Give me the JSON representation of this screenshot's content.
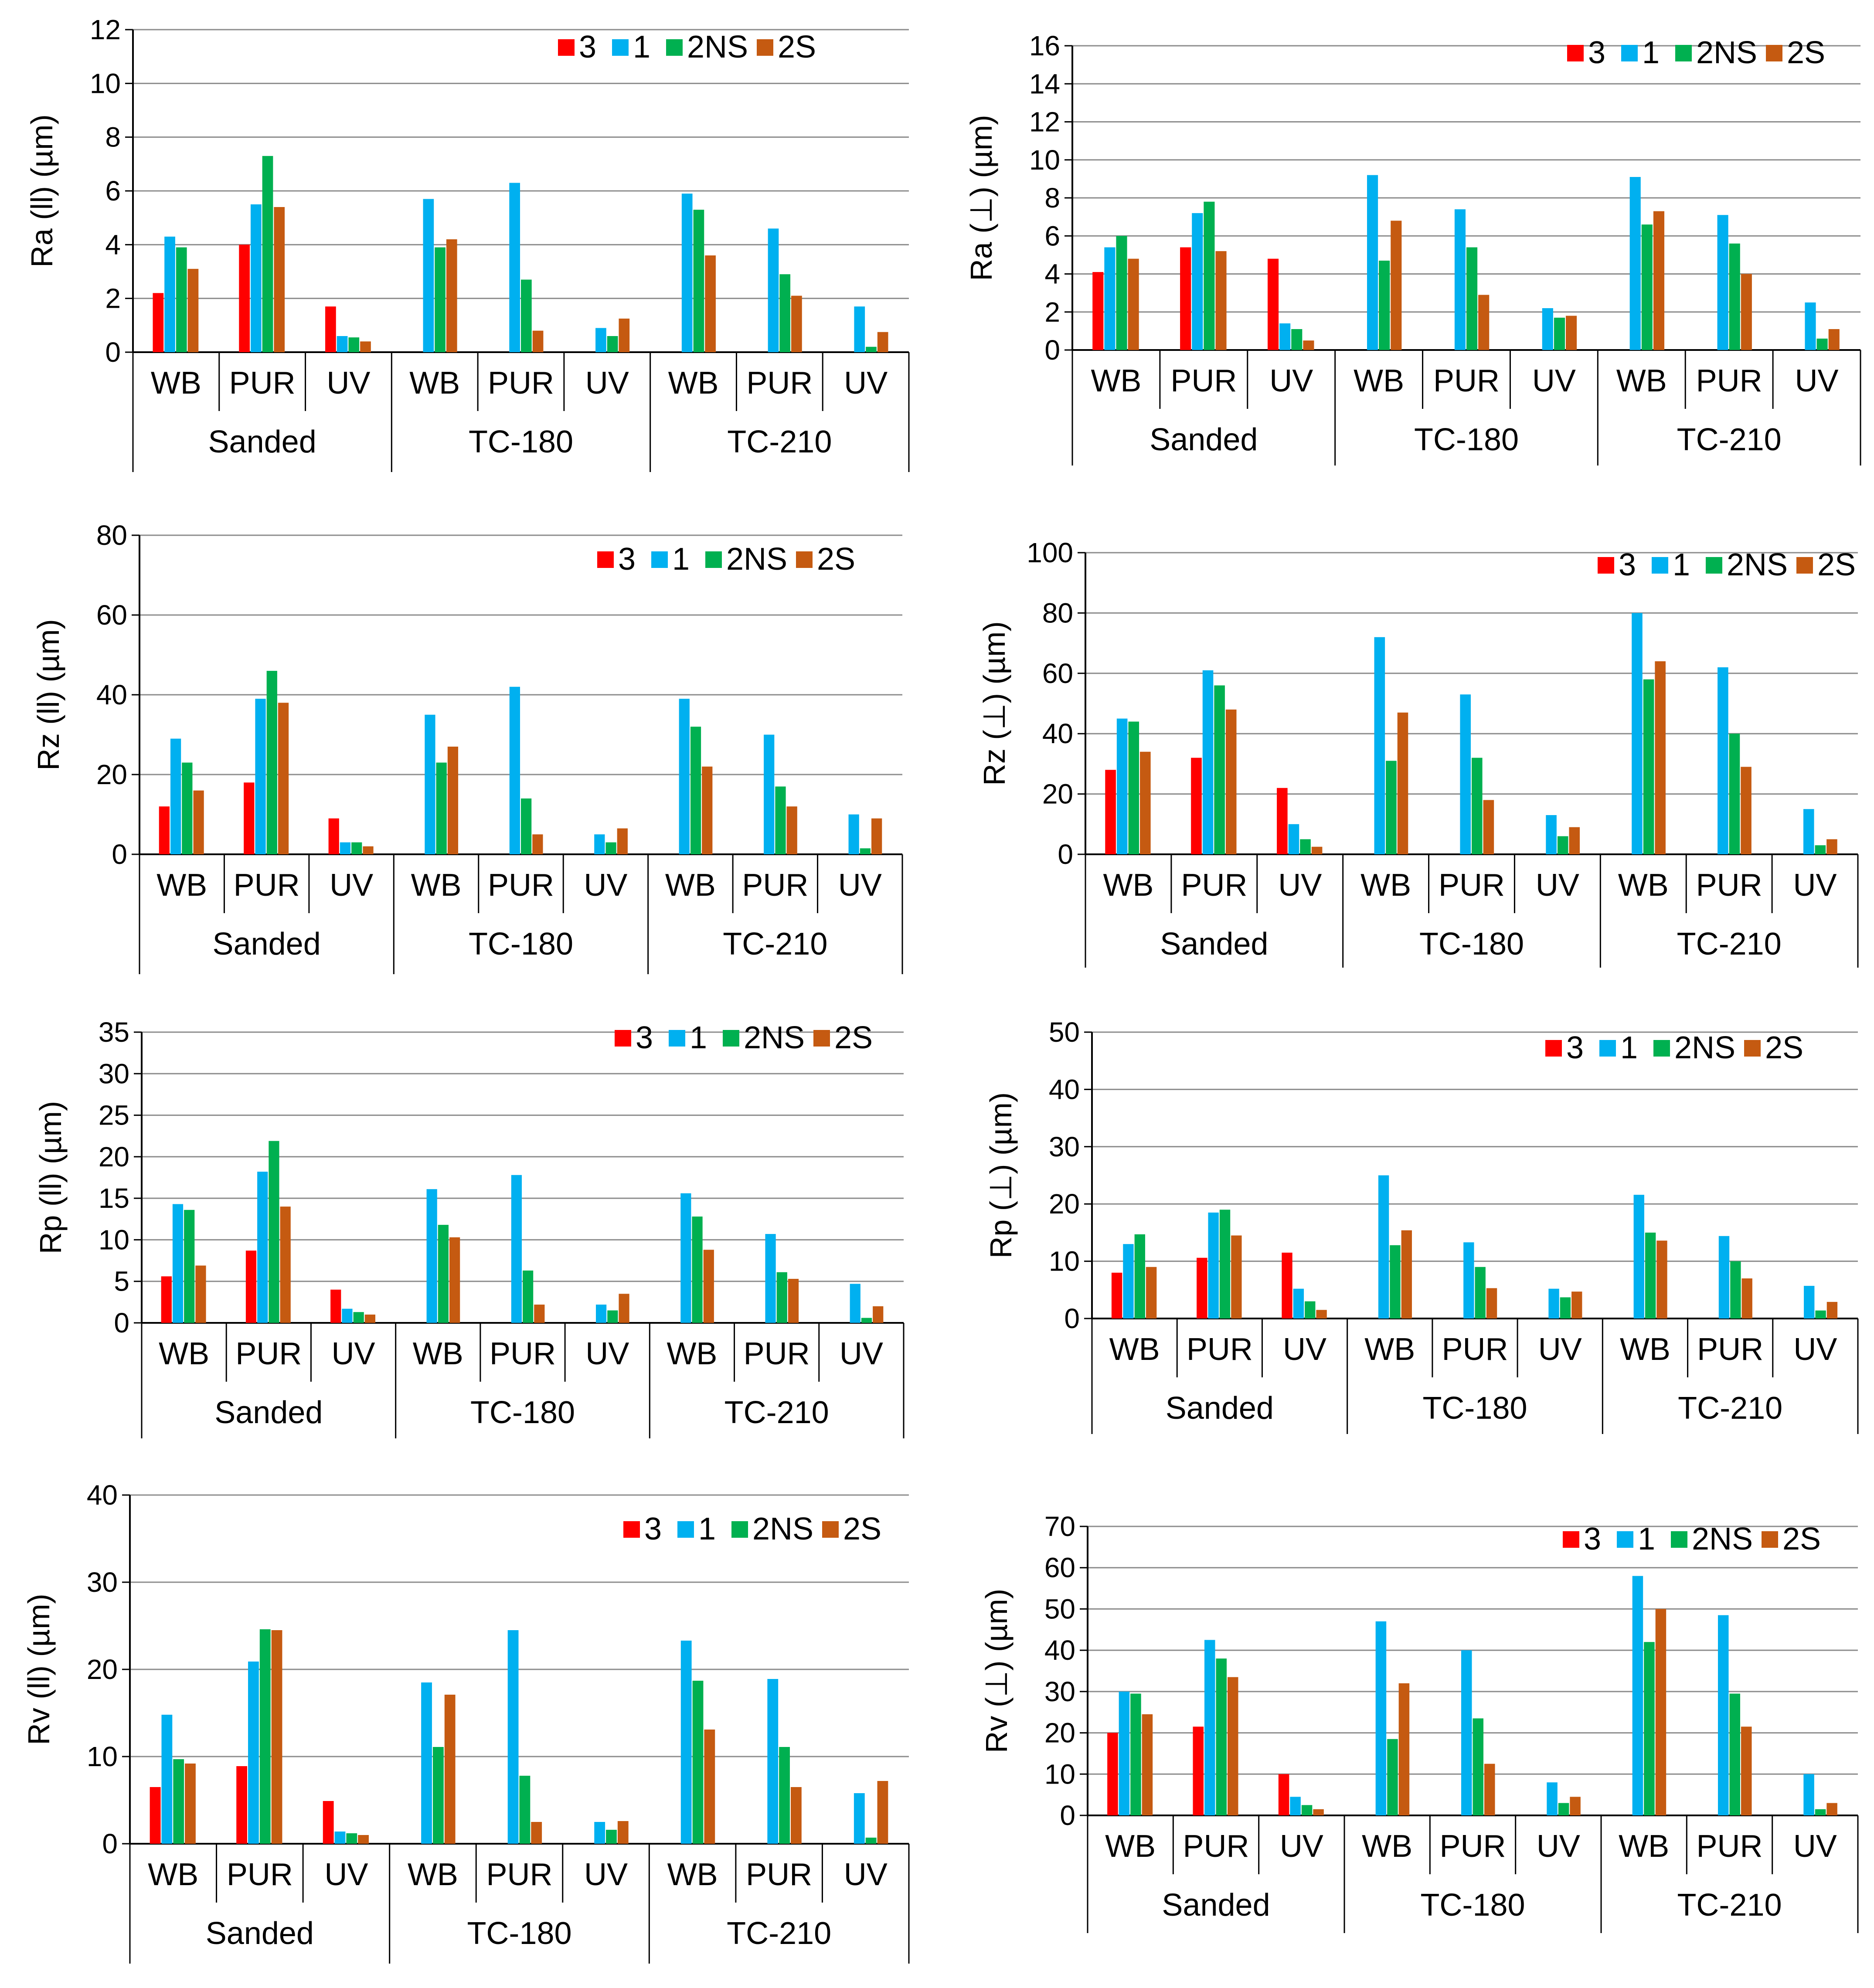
{
  "colors": {
    "3": "#ff0000",
    "1": "#00b0f0",
    "2NS": "#00b050",
    "2S": "#c55a11"
  },
  "chart_data": [
    {
      "type": "bar",
      "ylabel": "Ra (ll) (µm)",
      "ylim": [
        0,
        12
      ],
      "ytick_step": 2,
      "groups": [
        "Sanded",
        "TC-180",
        "TC-210"
      ],
      "categories": [
        "WB",
        "PUR",
        "UV",
        "WB",
        "PUR",
        "UV",
        "WB",
        "PUR",
        "UV"
      ],
      "legend": [
        "3",
        "1",
        "2NS",
        "2S"
      ],
      "series": [
        {
          "name": "3",
          "values": [
            2.2,
            4.0,
            1.7,
            null,
            null,
            null,
            null,
            null,
            null
          ]
        },
        {
          "name": "1",
          "values": [
            4.3,
            5.5,
            0.6,
            5.7,
            6.3,
            0.9,
            5.9,
            4.6,
            1.7
          ]
        },
        {
          "name": "2NS",
          "values": [
            3.9,
            7.3,
            0.55,
            3.9,
            2.7,
            0.6,
            5.3,
            2.9,
            0.2
          ]
        },
        {
          "name": "2S",
          "values": [
            3.1,
            5.4,
            0.4,
            4.2,
            0.8,
            1.25,
            3.6,
            2.1,
            0.75
          ]
        }
      ]
    },
    {
      "type": "bar",
      "ylabel": "Ra (⊥) (µm)",
      "ylim": [
        0,
        16
      ],
      "ytick_step": 2,
      "groups": [
        "Sanded",
        "TC-180",
        "TC-210"
      ],
      "categories": [
        "WB",
        "PUR",
        "UV",
        "WB",
        "PUR",
        "UV",
        "WB",
        "PUR",
        "UV"
      ],
      "legend": [
        "3",
        "1",
        "2NS",
        "2S"
      ],
      "series": [
        {
          "name": "3",
          "values": [
            4.1,
            5.4,
            4.8,
            null,
            null,
            null,
            null,
            null,
            null
          ]
        },
        {
          "name": "1",
          "values": [
            5.4,
            7.2,
            1.4,
            9.2,
            7.4,
            2.2,
            9.1,
            7.1,
            2.5
          ]
        },
        {
          "name": "2NS",
          "values": [
            6.0,
            7.8,
            1.1,
            4.7,
            5.4,
            1.7,
            6.6,
            5.6,
            0.6
          ]
        },
        {
          "name": "2S",
          "values": [
            4.8,
            5.2,
            0.5,
            6.8,
            2.9,
            1.8,
            7.3,
            4.0,
            1.1
          ]
        }
      ]
    },
    {
      "type": "bar",
      "ylabel": "Rz (ll)  (µm)",
      "ylim": [
        0,
        80
      ],
      "ytick_step": 20,
      "groups": [
        "Sanded",
        "TC-180",
        "TC-210"
      ],
      "categories": [
        "WB",
        "PUR",
        "UV",
        "WB",
        "PUR",
        "UV",
        "WB",
        "PUR",
        "UV"
      ],
      "legend": [
        "3",
        "1",
        "2NS",
        "2S"
      ],
      "series": [
        {
          "name": "3",
          "values": [
            12,
            18,
            9,
            null,
            null,
            null,
            null,
            null,
            null
          ]
        },
        {
          "name": "1",
          "values": [
            29,
            39,
            3,
            35,
            42,
            5,
            39,
            30,
            10
          ]
        },
        {
          "name": "2NS",
          "values": [
            23,
            46,
            3,
            23,
            14,
            3,
            32,
            17,
            1.5
          ]
        },
        {
          "name": "2S",
          "values": [
            16,
            38,
            2,
            27,
            5,
            6.5,
            22,
            12,
            9
          ]
        }
      ]
    },
    {
      "type": "bar",
      "ylabel": "Rz (⊥)  (µm)",
      "ylim": [
        0,
        100
      ],
      "ytick_step": 20,
      "groups": [
        "Sanded",
        "TC-180",
        "TC-210"
      ],
      "categories": [
        "WB",
        "PUR",
        "UV",
        "WB",
        "PUR",
        "UV",
        "WB",
        "PUR",
        "UV"
      ],
      "legend": [
        "3",
        "1",
        "2NS",
        "2S"
      ],
      "series": [
        {
          "name": "3",
          "values": [
            28,
            32,
            22,
            null,
            null,
            null,
            null,
            null,
            null
          ]
        },
        {
          "name": "1",
          "values": [
            45,
            61,
            10,
            72,
            53,
            13,
            80,
            62,
            15
          ]
        },
        {
          "name": "2NS",
          "values": [
            44,
            56,
            5,
            31,
            32,
            6,
            58,
            40,
            3
          ]
        },
        {
          "name": "2S",
          "values": [
            34,
            48,
            2.5,
            47,
            18,
            9,
            64,
            29,
            5
          ]
        }
      ]
    },
    {
      "type": "bar",
      "ylabel": "Rp (ll) (µm)",
      "ylim": [
        0,
        35
      ],
      "ytick_step": 5,
      "groups": [
        "Sanded",
        "TC-180",
        "TC-210"
      ],
      "categories": [
        "WB",
        "PUR",
        "UV",
        "WB",
        "PUR",
        "UV",
        "WB",
        "PUR",
        "UV"
      ],
      "legend": [
        "3",
        "1",
        "2NS",
        "2S"
      ],
      "series": [
        {
          "name": "3",
          "values": [
            5.6,
            8.7,
            4.0,
            null,
            null,
            null,
            null,
            null,
            null
          ]
        },
        {
          "name": "1",
          "values": [
            14.3,
            18.2,
            1.7,
            16.1,
            17.8,
            2.2,
            15.6,
            10.7,
            4.7
          ]
        },
        {
          "name": "2NS",
          "values": [
            13.6,
            21.9,
            1.3,
            11.8,
            6.3,
            1.5,
            12.8,
            6.1,
            0.6
          ]
        },
        {
          "name": "2S",
          "values": [
            6.9,
            14.0,
            1.0,
            10.3,
            2.2,
            3.5,
            8.8,
            5.3,
            2.0
          ]
        }
      ]
    },
    {
      "type": "bar",
      "ylabel": "Rp (⊥) (µm)",
      "ylim": [
        0,
        50
      ],
      "ytick_step": 10,
      "groups": [
        "Sanded",
        "TC-180",
        "TC-210"
      ],
      "categories": [
        "WB",
        "PUR",
        "UV",
        "WB",
        "PUR",
        "UV",
        "WB",
        "PUR",
        "UV"
      ],
      "legend": [
        "3",
        "1",
        "2NS",
        "2S"
      ],
      "series": [
        {
          "name": "3",
          "values": [
            8,
            10.6,
            11.5,
            null,
            null,
            null,
            null,
            null,
            null
          ]
        },
        {
          "name": "1",
          "values": [
            13,
            18.5,
            5.2,
            25,
            13.3,
            5.2,
            21.6,
            14.4,
            5.7
          ]
        },
        {
          "name": "2NS",
          "values": [
            14.7,
            19,
            3,
            12.8,
            9,
            3.7,
            15,
            10,
            1.4
          ]
        },
        {
          "name": "2S",
          "values": [
            9,
            14.5,
            1.5,
            15.4,
            5.3,
            4.7,
            13.6,
            7,
            2.9
          ]
        }
      ]
    },
    {
      "type": "bar",
      "ylabel": "Rv (ll) (µm)",
      "ylim": [
        0,
        40
      ],
      "ytick_step": 10,
      "groups": [
        "Sanded",
        "TC-180",
        "TC-210"
      ],
      "categories": [
        "WB",
        "PUR",
        "UV",
        "WB",
        "PUR",
        "UV",
        "WB",
        "PUR",
        "UV"
      ],
      "legend": [
        "3",
        "1",
        "2NS",
        "2S"
      ],
      "series": [
        {
          "name": "3",
          "values": [
            6.5,
            8.9,
            4.9,
            null,
            null,
            null,
            null,
            null,
            null
          ]
        },
        {
          "name": "1",
          "values": [
            14.8,
            20.9,
            1.4,
            18.5,
            24.5,
            2.5,
            23.3,
            18.9,
            5.8
          ]
        },
        {
          "name": "2NS",
          "values": [
            9.7,
            24.6,
            1.2,
            11.1,
            7.8,
            1.6,
            18.7,
            11.1,
            0.7
          ]
        },
        {
          "name": "2S",
          "values": [
            9.2,
            24.5,
            1.0,
            17.1,
            2.5,
            2.6,
            13.1,
            6.5,
            7.2
          ]
        }
      ]
    },
    {
      "type": "bar",
      "ylabel": "Rv (⊥) (µm)",
      "ylim": [
        0,
        70
      ],
      "ytick_step": 10,
      "groups": [
        "Sanded",
        "TC-180",
        "TC-210"
      ],
      "categories": [
        "WB",
        "PUR",
        "UV",
        "WB",
        "PUR",
        "UV",
        "WB",
        "PUR",
        "UV"
      ],
      "legend": [
        "3",
        "1",
        "2NS",
        "2S"
      ],
      "series": [
        {
          "name": "3",
          "values": [
            20,
            21.5,
            10,
            null,
            null,
            null,
            null,
            null,
            null
          ]
        },
        {
          "name": "1",
          "values": [
            30,
            42.5,
            4.5,
            47,
            40,
            8,
            58,
            48.5,
            10
          ]
        },
        {
          "name": "2NS",
          "values": [
            29.5,
            38,
            2.5,
            18.5,
            23.5,
            3,
            42,
            29.5,
            1.5
          ]
        },
        {
          "name": "2S",
          "values": [
            24.5,
            33.5,
            1.5,
            32,
            12.5,
            4.5,
            50,
            21.5,
            3
          ]
        }
      ]
    }
  ]
}
